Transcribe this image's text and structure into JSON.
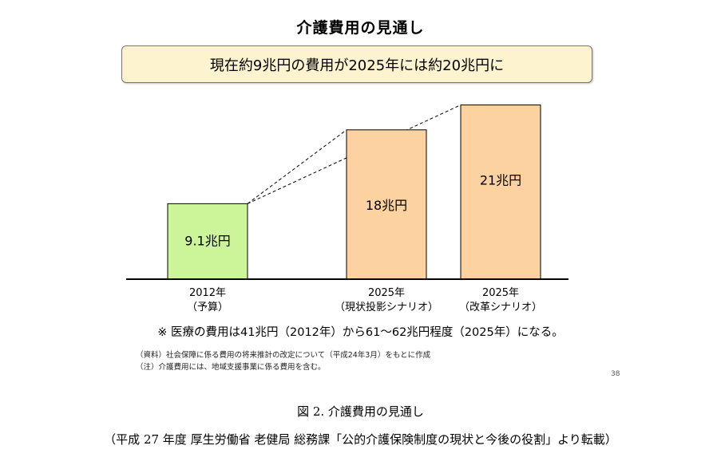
{
  "slide": {
    "title": "介護費用の見通し",
    "banner": "現在約9兆円の費用が2025年には約20兆円に",
    "note": "※ 医療の費用は41兆円（2012年）から61～62兆円程度（2025年）になる。",
    "source_line_1": "（資料）社会保障に係る費用の将来推計の改定について（平成24年3月）をもとに作成",
    "source_line_2": "（注）介護費用には、地域支援事業に係る費用を含む。",
    "page_number": "38"
  },
  "figure": {
    "caption": "図 2. 介護費用の見通し",
    "credit": "（平成 27 年度  厚生労働省  老健局  総務課「公的介護保険制度の現状と今後の役割」より転載）"
  },
  "chart_data": {
    "type": "bar",
    "categories": [
      {
        "line1": "2012年",
        "line2": "（予算）"
      },
      {
        "line1": "2025年",
        "line2": "（現状投影シナリオ）"
      },
      {
        "line1": "2025年",
        "line2": "（改革シナリオ）"
      }
    ],
    "values": [
      9.1,
      18,
      21
    ],
    "data_labels": [
      "9.1兆円",
      "18兆円",
      "21兆円"
    ],
    "unit": "兆円",
    "colors": [
      "#ccf59a",
      "#fcd2a0",
      "#fcd2a0"
    ],
    "border_color": "#000000",
    "connector": "dashed lines from top corners of first bar to second and third bars",
    "axis": false,
    "grid": false
  }
}
